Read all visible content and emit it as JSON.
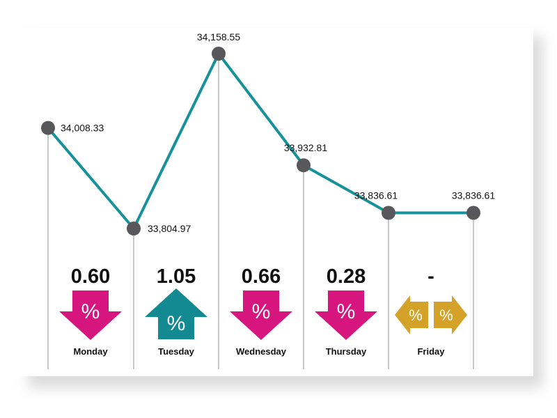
{
  "colors": {
    "line": "#17929a",
    "marker": "#58585a",
    "vline": "#b5b5b5",
    "down": "#d6157f",
    "up": "#138a92",
    "flat": "#d4a229"
  },
  "chart_data": {
    "type": "line",
    "title": "",
    "xlabel": "",
    "ylabel": "",
    "points": [
      {
        "value": 34008.33,
        "label": "34,008.33"
      },
      {
        "value": 33804.97,
        "label": "33,804.97"
      },
      {
        "value": 34158.55,
        "label": "34,158.55"
      },
      {
        "value": 33932.81,
        "label": "33,932.81"
      },
      {
        "value": 33836.61,
        "label": "33,836.61"
      },
      {
        "value": 33836.61,
        "label": "33,836.61"
      }
    ],
    "days": [
      {
        "name": "Monday",
        "change": "0.60",
        "direction": "down",
        "symbol": "%"
      },
      {
        "name": "Tuesday",
        "change": "1.05",
        "direction": "up",
        "symbol": "%"
      },
      {
        "name": "Wednesday",
        "change": "0.66",
        "direction": "down",
        "symbol": "%"
      },
      {
        "name": "Thursday",
        "change": "0.28",
        "direction": "down",
        "symbol": "%"
      },
      {
        "name": "Friday",
        "change": "-",
        "direction": "flat",
        "symbol": "%"
      }
    ],
    "grid": false,
    "legend": "none"
  }
}
